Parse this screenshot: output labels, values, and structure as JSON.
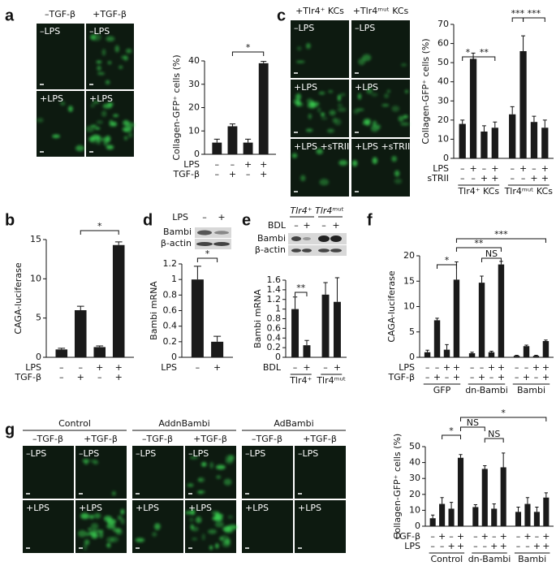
{
  "figure": {
    "panel_labels": [
      "a",
      "b",
      "c",
      "d",
      "e",
      "f",
      "g"
    ],
    "a": {
      "columns": [
        "–TGF-β",
        "+TGF-β"
      ],
      "images": [
        "–LPS",
        "–LPS",
        "+LPS",
        "+LPS"
      ]
    },
    "c": {
      "columns": [
        "+Tlr4⁺ KCs",
        "+Tlr4ᵐᵘᵗ KCs"
      ],
      "images": [
        "–LPS",
        "–LPS",
        "+LPS",
        "+LPS",
        "+LPS +sTRII",
        "+LPS +sTRII"
      ]
    },
    "d": {
      "blot_header": "LPS",
      "blot_lanes": [
        "–",
        "+"
      ],
      "blot_rows": [
        "Bambi",
        "β-actin"
      ]
    },
    "e": {
      "blot_groups": [
        "Tlr4⁺",
        "Tlr4ᵐᵘᵗ"
      ],
      "blot_header": "BDL",
      "blot_lanes": [
        "–",
        "+",
        "–",
        "+"
      ],
      "blot_rows": [
        "Bambi",
        "β-actin"
      ]
    },
    "g": {
      "groups": [
        "Control",
        "AddnBambi",
        "AdBambi"
      ],
      "columns": [
        "–TGF-β",
        "+TGF-β",
        "–TGF-β",
        "+TGF-β",
        "–TGF-β",
        "+TGF-β"
      ],
      "images": [
        "–LPS",
        "–LPS",
        "–LPS",
        "–LPS",
        "–LPS",
        "–LPS",
        "+LPS",
        "+LPS",
        "+LPS",
        "+LPS",
        "+LPS",
        "+LPS"
      ]
    }
  },
  "chart_data": [
    {
      "type": "bar",
      "ylabel": "Collagen-GFP⁺ cells (%)",
      "values": [
        5,
        12,
        5,
        39
      ],
      "errors": [
        1.5,
        1,
        1.5,
        0.8
      ],
      "ylim": [
        0,
        40
      ],
      "yticks": [
        0,
        10,
        20,
        30,
        40
      ],
      "color": "#1a1a1a",
      "rows": [
        {
          "name": "LPS",
          "labels": [
            "–",
            "–",
            "+",
            "+"
          ]
        },
        {
          "name": "TGF-β",
          "labels": [
            "–",
            "+",
            "–",
            "+"
          ]
        }
      ],
      "annotations": [
        "*"
      ]
    },
    {
      "type": "bar",
      "ylabel": "CAGA-luciferase",
      "values": [
        1,
        6,
        1.3,
        14.3
      ],
      "errors": [
        0.15,
        0.5,
        0.15,
        0.4
      ],
      "ylim": [
        0,
        15
      ],
      "yticks": [
        0,
        5,
        10,
        15
      ],
      "color": "#1a1a1a",
      "rows": [
        {
          "name": "LPS",
          "labels": [
            "–",
            "–",
            "+",
            "+"
          ]
        },
        {
          "name": "TGF-β",
          "labels": [
            "–",
            "+",
            "–",
            "+"
          ]
        }
      ],
      "annotations": [
        "*"
      ]
    },
    {
      "type": "bar",
      "ylabel": "Collagen-GFP⁺ cells (%)",
      "values": [
        18,
        52,
        14,
        16,
        23,
        56,
        19,
        16
      ],
      "errors": [
        2,
        3,
        3,
        3,
        4,
        8,
        3,
        4
      ],
      "ylim": [
        0,
        70
      ],
      "yticks": [
        0,
        10,
        20,
        30,
        40,
        50,
        60,
        70
      ],
      "color": "#1a1a1a",
      "rows": [
        {
          "name": "LPS",
          "labels": [
            "–",
            "+",
            "–",
            "+",
            "–",
            "+",
            "–",
            "+"
          ]
        },
        {
          "name": "sTRII",
          "labels": [
            "–",
            "–",
            "+",
            "+",
            "–",
            "–",
            "+",
            "+"
          ]
        }
      ],
      "groups": [
        "Tlr4⁺ KCs",
        "Tlr4ᵐᵘᵗ KCs"
      ],
      "annotations": [
        "*",
        "**",
        "***",
        "***"
      ]
    },
    {
      "type": "bar",
      "ylabel": "Bambi mRNA",
      "values": [
        1,
        0.2
      ],
      "errors": [
        0.17,
        0.07
      ],
      "ylim": [
        0,
        1.2
      ],
      "yticks": [
        0,
        0.2,
        0.4,
        0.6,
        0.8,
        1,
        1.2
      ],
      "color": "#1a1a1a",
      "rows": [
        {
          "name": "LPS",
          "labels": [
            "–",
            "+"
          ]
        }
      ],
      "annotations": [
        "*"
      ]
    },
    {
      "type": "bar",
      "ylabel": "Bambi mRNA",
      "values": [
        1,
        0.25,
        1.3,
        1.15
      ],
      "errors": [
        0.25,
        0.1,
        0.25,
        0.5
      ],
      "ylim": [
        0,
        1.6
      ],
      "yticks": [
        0,
        0.2,
        0.4,
        0.6,
        0.8,
        1,
        1.2,
        1.4,
        1.6
      ],
      "color": "#1a1a1a",
      "rows": [
        {
          "name": "BDL",
          "labels": [
            "–",
            "+",
            "–",
            "+"
          ]
        }
      ],
      "groups": [
        "Tlr4⁺",
        "Tlr4ᵐᵘᵗ"
      ],
      "annotations": [
        "**"
      ]
    },
    {
      "type": "bar",
      "ylabel": "CAGA-luciferase",
      "values": [
        1,
        7.3,
        1.5,
        15.3,
        0.8,
        14.7,
        1,
        18.3,
        0.3,
        2.2,
        0.3,
        3.2
      ],
      "errors": [
        0.4,
        0.4,
        1,
        3.5,
        0.2,
        1.3,
        0.2,
        0.6,
        0.1,
        0.2,
        0.1,
        0.2
      ],
      "ylim": [
        0,
        20
      ],
      "yticks": [
        0,
        5,
        10,
        15,
        20
      ],
      "color": "#1a1a1a",
      "rows": [
        {
          "name": "LPS",
          "labels": [
            "–",
            "–",
            "+",
            "+",
            "–",
            "–",
            "+",
            "+",
            "–",
            "–",
            "+",
            "+"
          ]
        },
        {
          "name": "TGF-β",
          "labels": [
            "–",
            "+",
            "–",
            "+",
            "–",
            "+",
            "–",
            "+",
            "–",
            "+",
            "–",
            "+"
          ]
        }
      ],
      "groups": [
        "GFP",
        "dn-Bambi",
        "Bambi"
      ],
      "annotations": [
        "*",
        "**",
        "***",
        "NS"
      ]
    },
    {
      "type": "bar",
      "ylabel": "Collagen-GFP⁺ cells (%)",
      "values": [
        5,
        14,
        11,
        43,
        12,
        36,
        11,
        37,
        9,
        14,
        9,
        18
      ],
      "errors": [
        2,
        4,
        4,
        2,
        1.5,
        2,
        3,
        9,
        3,
        4,
        3,
        3
      ],
      "ylim": [
        0,
        50
      ],
      "yticks": [
        0,
        10,
        20,
        30,
        40,
        50
      ],
      "color": "#1a1a1a",
      "rows": [
        {
          "name": "TGF-β",
          "labels": [
            "–",
            "+",
            "–",
            "+",
            "–",
            "+",
            "–",
            "+",
            "–",
            "+",
            "–",
            "+"
          ]
        },
        {
          "name": "LPS",
          "labels": [
            "–",
            "–",
            "+",
            "+",
            "–",
            "–",
            "+",
            "+",
            "–",
            "–",
            "+",
            "+"
          ]
        }
      ],
      "groups": [
        "Control",
        "dn-Bambi",
        "Bambi"
      ],
      "annotations": [
        "*",
        "NS",
        "NS",
        "*"
      ]
    }
  ]
}
